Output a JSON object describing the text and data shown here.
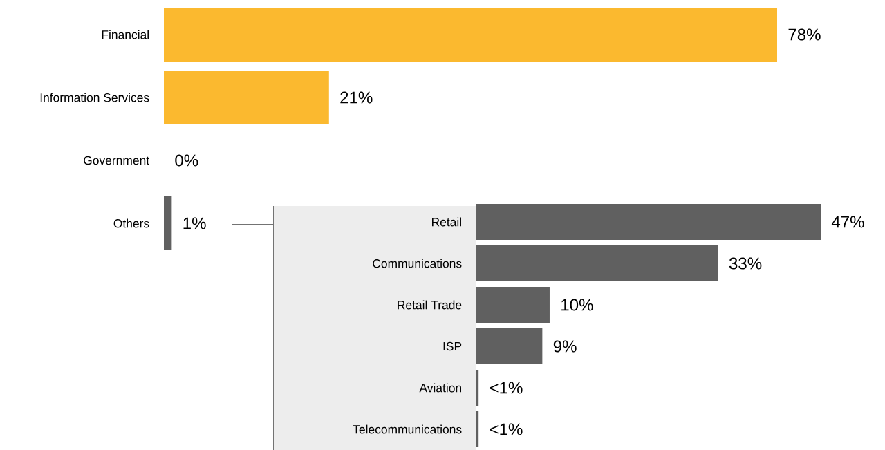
{
  "chart_data": [
    {
      "type": "bar",
      "orientation": "horizontal",
      "categories": [
        "Financial",
        "Information Services",
        "Government",
        "Others"
      ],
      "values": [
        78,
        21,
        0,
        1
      ],
      "colors": [
        "#fbb92f",
        "#fbb92f",
        "#fbb92f",
        "#606060"
      ],
      "value_labels": [
        "78%",
        "21%",
        "0%",
        "1%"
      ]
    },
    {
      "type": "bar",
      "orientation": "horizontal",
      "categories": [
        "Retail",
        "Communications",
        "Retail Trade",
        "ISP",
        "Aviation",
        "Telecommunications"
      ],
      "values": [
        47,
        33,
        10,
        9,
        0.3,
        0.3
      ],
      "color": "#606060",
      "value_labels": [
        "47%",
        "33%",
        "10%",
        "9%",
        "<1%",
        "<1%"
      ]
    }
  ]
}
